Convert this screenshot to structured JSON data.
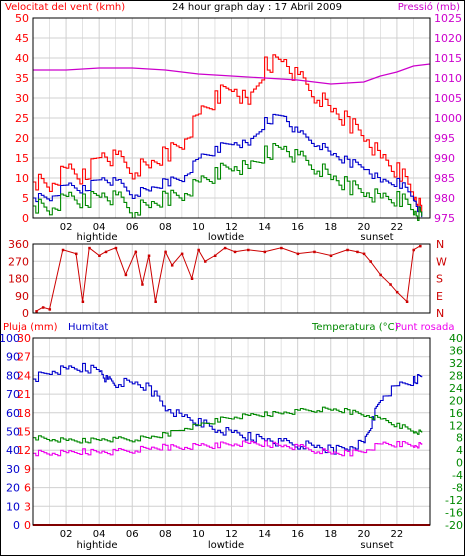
{
  "header": {
    "wind_label": "Velocitat del vent (kmh)",
    "graph_title": "24 hour graph day : 17 Abril 2009",
    "pressure_label": "Pressió (mb)"
  },
  "lower_header": {
    "rain_label": "Pluja (mm)",
    "humidity_label": "Humitat",
    "temperature_label": "Temperatura (°C)",
    "dewpoint_label": "Punt rosada"
  },
  "markers": {
    "hightide": "hightide",
    "lowtide": "lowtide",
    "sunset": "sunset"
  },
  "x_ticks": [
    "02",
    "04",
    "06",
    "08",
    "10",
    "12",
    "14",
    "16",
    "18",
    "20",
    "22"
  ],
  "direction_letters": [
    "N",
    "W",
    "S",
    "E",
    "N"
  ],
  "colors": {
    "wind_gust": "#ff0000",
    "wind_avg": "#0000cc",
    "wind_min": "#008800",
    "wind_direction": "#cc0000",
    "pressure": "#cc00cc",
    "rain": "#ff0000",
    "humidity": "#0000cc",
    "temperature": "#008800",
    "dewpoint": "#ee00ee",
    "grid": "#d0d0d0",
    "axis": "#000000"
  },
  "chart_data": [
    {
      "type": "line",
      "name": "wind-chart",
      "x_range": [
        0,
        24
      ],
      "left_axis": {
        "label": "Velocitat del vent (kmh)",
        "ylim": [
          0,
          50
        ],
        "ticks": [
          0,
          5,
          10,
          15,
          20,
          25,
          30,
          35,
          40,
          45,
          50
        ]
      },
      "right_axis": {
        "label": "Pressió (mb)",
        "ylim": [
          975,
          1025
        ],
        "ticks": [
          975,
          980,
          985,
          990,
          995,
          1000,
          1005,
          1010,
          1015,
          1020,
          1025
        ]
      },
      "series": [
        {
          "key": "gust",
          "axis": "left",
          "x": [
            0,
            1,
            2,
            3,
            4,
            5,
            6,
            7,
            8,
            9,
            10,
            11,
            12,
            13,
            14,
            15,
            16,
            17,
            18,
            19,
            20,
            21,
            22,
            23,
            23.5
          ],
          "values": [
            9,
            8,
            12,
            10,
            16,
            15,
            12,
            13,
            16,
            19,
            26,
            30,
            33,
            28,
            38,
            40,
            35,
            31,
            27,
            24,
            21,
            15,
            12,
            6,
            1
          ]
        },
        {
          "key": "average",
          "axis": "left",
          "x": [
            0,
            1,
            2,
            3,
            4,
            5,
            6,
            7,
            8,
            9,
            10,
            11,
            12,
            13,
            14,
            15,
            16,
            17,
            18,
            19,
            20,
            21,
            22,
            23,
            23.5
          ],
          "values": [
            5,
            5,
            8,
            7,
            10,
            9,
            6,
            7,
            9,
            10,
            15,
            17,
            19,
            18,
            24,
            26,
            21,
            19,
            16,
            14,
            13,
            9,
            9,
            5,
            0
          ]
        },
        {
          "key": "minimum",
          "axis": "left",
          "x": [
            0,
            1,
            2,
            3,
            4,
            5,
            6,
            7,
            8,
            9,
            10,
            11,
            12,
            13,
            14,
            15,
            16,
            17,
            18,
            19,
            20,
            21,
            22,
            23,
            23.5
          ],
          "values": [
            3,
            2,
            5,
            4,
            6,
            5,
            2,
            3,
            5,
            6,
            9,
            11,
            13,
            12,
            16,
            18,
            15,
            13,
            10,
            8,
            7,
            5,
            5,
            2,
            0
          ]
        },
        {
          "key": "pressure",
          "axis": "right",
          "x": [
            0,
            2,
            4,
            6,
            8,
            10,
            12,
            14,
            16,
            18,
            20,
            21,
            22,
            23,
            24
          ],
          "values": [
            1012,
            1012,
            1012.5,
            1012.5,
            1012,
            1011,
            1010.5,
            1010,
            1009.5,
            1008.5,
            1009,
            1010.5,
            1011.5,
            1013,
            1013.5
          ]
        }
      ]
    },
    {
      "type": "scatter",
      "name": "wind-direction-chart",
      "x_range": [
        0,
        24
      ],
      "ylim": [
        0,
        360
      ],
      "ticks": [
        0,
        90,
        180,
        270,
        360
      ],
      "series": [
        {
          "key": "direction",
          "x": [
            0.2,
            0.6,
            1,
            1.8,
            2.6,
            3,
            3.4,
            4,
            4.4,
            5,
            5.6,
            6.2,
            6.6,
            7,
            7.4,
            8,
            8.4,
            9,
            9.6,
            10,
            10.4,
            11,
            11.6,
            12.2,
            13,
            14,
            15,
            16,
            17,
            18,
            19,
            19.6,
            20,
            20.4,
            21,
            21.6,
            22,
            22.6,
            23,
            23.4
          ],
          "values": [
            10,
            30,
            20,
            330,
            310,
            60,
            340,
            300,
            320,
            340,
            200,
            320,
            150,
            300,
            60,
            320,
            250,
            310,
            180,
            330,
            270,
            300,
            340,
            320,
            330,
            320,
            340,
            310,
            320,
            300,
            330,
            320,
            310,
            270,
            200,
            150,
            110,
            60,
            330,
            350
          ]
        }
      ]
    },
    {
      "type": "line",
      "name": "humidity-temperature-chart",
      "x_range": [
        0,
        24
      ],
      "rain_axis": {
        "label": "Pluja (mm)",
        "ylim": [
          0,
          30
        ],
        "ticks": [
          0,
          3,
          6,
          9,
          12,
          15,
          18,
          21,
          24,
          27,
          30
        ]
      },
      "humidity_axis": {
        "label": "Humitat",
        "ylim": [
          0,
          100
        ],
        "ticks": [
          0,
          10,
          20,
          30,
          40,
          50,
          60,
          70,
          80,
          90,
          100
        ]
      },
      "temperature_axis": {
        "label": "Temperatura (°C)",
        "ylim": [
          -20,
          40
        ],
        "ticks": [
          -20,
          -16,
          -12,
          -8,
          -4,
          0,
          4,
          8,
          12,
          16,
          20,
          24,
          28,
          32,
          36,
          40
        ]
      },
      "series": [
        {
          "key": "rain",
          "axis": "rain",
          "x": [
            0,
            24
          ],
          "values": [
            0,
            0
          ]
        },
        {
          "key": "humidity",
          "axis": "humidity",
          "x": [
            0,
            1,
            2,
            3,
            4,
            4.5,
            5,
            6,
            7,
            8,
            9,
            10,
            11,
            12,
            13,
            14,
            15,
            16,
            17,
            18,
            19,
            20,
            20.5,
            21,
            22,
            23,
            23.5
          ],
          "values": [
            78,
            82,
            83,
            84,
            83,
            77,
            76,
            76,
            73,
            63,
            58,
            55,
            51,
            49,
            47,
            46,
            44,
            43,
            42,
            40,
            42,
            44,
            56,
            68,
            74,
            77,
            80
          ]
        },
        {
          "key": "temperature",
          "axis": "temperature",
          "x": [
            0,
            1,
            2,
            3,
            4,
            5,
            6,
            7,
            8,
            9,
            10,
            11,
            12,
            13,
            14,
            15,
            16,
            17,
            18,
            19,
            20,
            21,
            22,
            23,
            23.5
          ],
          "values": [
            8,
            7.5,
            7,
            7,
            7.5,
            7.5,
            7.5,
            8,
            9,
            11,
            12,
            13.5,
            14.5,
            15,
            15.5,
            16,
            16.5,
            17,
            17,
            16.5,
            15.5,
            14,
            12,
            10,
            9.5
          ]
        },
        {
          "key": "dewpoint",
          "axis": "temperature",
          "x": [
            0,
            1,
            2,
            3,
            4,
            5,
            6,
            7,
            8,
            9,
            10,
            11,
            12,
            13,
            14,
            15,
            16,
            17,
            18,
            19,
            20,
            21,
            22,
            23,
            23.5
          ],
          "values": [
            3,
            3,
            3,
            3.5,
            3.5,
            3.5,
            4,
            4.5,
            5,
            5,
            5.5,
            5.5,
            6,
            6,
            6,
            5.5,
            5,
            4,
            3,
            3,
            4,
            6,
            6,
            5.5,
            5.5
          ]
        }
      ]
    }
  ]
}
